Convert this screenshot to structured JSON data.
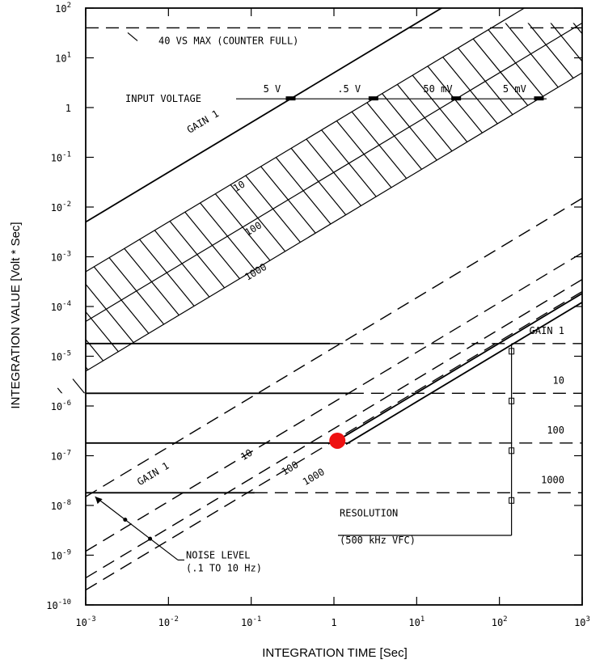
{
  "chart_data": {
    "type": "line",
    "xlabel": "INTEGRATION TIME [Sec]",
    "ylabel": "INTEGRATION VALUE [Volt * Sec]",
    "x_scale": "log",
    "y_scale": "log",
    "xlim": [
      0.001,
      1000
    ],
    "ylim": [
      1e-10,
      100
    ],
    "x_ticks": [
      {
        "v": 0.001,
        "base": "10",
        "exp": "-3"
      },
      {
        "v": 0.01,
        "base": "10",
        "exp": "-2"
      },
      {
        "v": 0.1,
        "base": "10",
        "exp": "-1"
      },
      {
        "v": 1,
        "base": "1",
        "exp": ""
      },
      {
        "v": 10,
        "base": "10",
        "exp": "1"
      },
      {
        "v": 100,
        "base": "10",
        "exp": "2"
      },
      {
        "v": 1000,
        "base": "10",
        "exp": "3"
      }
    ],
    "y_ticks": [
      {
        "v": 100,
        "base": "10",
        "exp": "2"
      },
      {
        "v": 10,
        "base": "10",
        "exp": "1"
      },
      {
        "v": 1,
        "base": "1",
        "exp": ""
      },
      {
        "v": 0.1,
        "base": "10",
        "exp": "-1"
      },
      {
        "v": 0.01,
        "base": "10",
        "exp": "-2"
      },
      {
        "v": 0.001,
        "base": "10",
        "exp": "-3"
      },
      {
        "v": 0.0001,
        "base": "10",
        "exp": "-4"
      },
      {
        "v": 1e-05,
        "base": "10",
        "exp": "-5"
      },
      {
        "v": 1e-06,
        "base": "10",
        "exp": "-6"
      },
      {
        "v": 1e-07,
        "base": "10",
        "exp": "-7"
      },
      {
        "v": 1e-08,
        "base": "10",
        "exp": "-8"
      },
      {
        "v": 1e-09,
        "base": "10",
        "exp": "-9"
      },
      {
        "v": 1e-10,
        "base": "10",
        "exp": "-10"
      }
    ],
    "max_line": {
      "y": 40,
      "label": "40 VS MAX (COUNTER FULL)"
    },
    "input_voltage": {
      "label": "INPUT VOLTAGE",
      "y": 1.5,
      "items": [
        "5 V",
        ".5 V",
        "50 mV",
        "5 mV"
      ]
    },
    "upper_gain_lines": [
      {
        "label": "GAIN 1",
        "y_at_xmin": 0.005
      },
      {
        "label": "10",
        "y_at_xmin": 0.0005
      },
      {
        "label": "100",
        "y_at_xmin": 5e-05
      },
      {
        "label": "1000",
        "y_at_xmin": 5e-06
      }
    ],
    "resolution_levels": [
      {
        "label": "GAIN 1",
        "y": 1.8e-05
      },
      {
        "label": "10",
        "y": 1.8e-06
      },
      {
        "label": "100",
        "y": 1.8e-07
      },
      {
        "label": "1000",
        "y": 1.8e-08
      }
    ],
    "lower_gain_lines": [
      {
        "label": "GAIN 1",
        "y_at_xmin": 1.5e-08
      },
      {
        "label": "10",
        "y_at_xmin": 1.2e-09
      },
      {
        "label": "100",
        "y_at_xmin": 3.5e-10
      },
      {
        "label": "1000",
        "y_at_xmin": 2e-10
      }
    ],
    "resolution_label": [
      "RESOLUTION",
      "(500 kHz VFC)"
    ],
    "noise_label": [
      "NOISE LEVEL",
      "(.1 TO 10 Hz)"
    ],
    "highlight_point": {
      "x": 1.1,
      "y": 2e-07,
      "color": "#ee1111"
    }
  }
}
